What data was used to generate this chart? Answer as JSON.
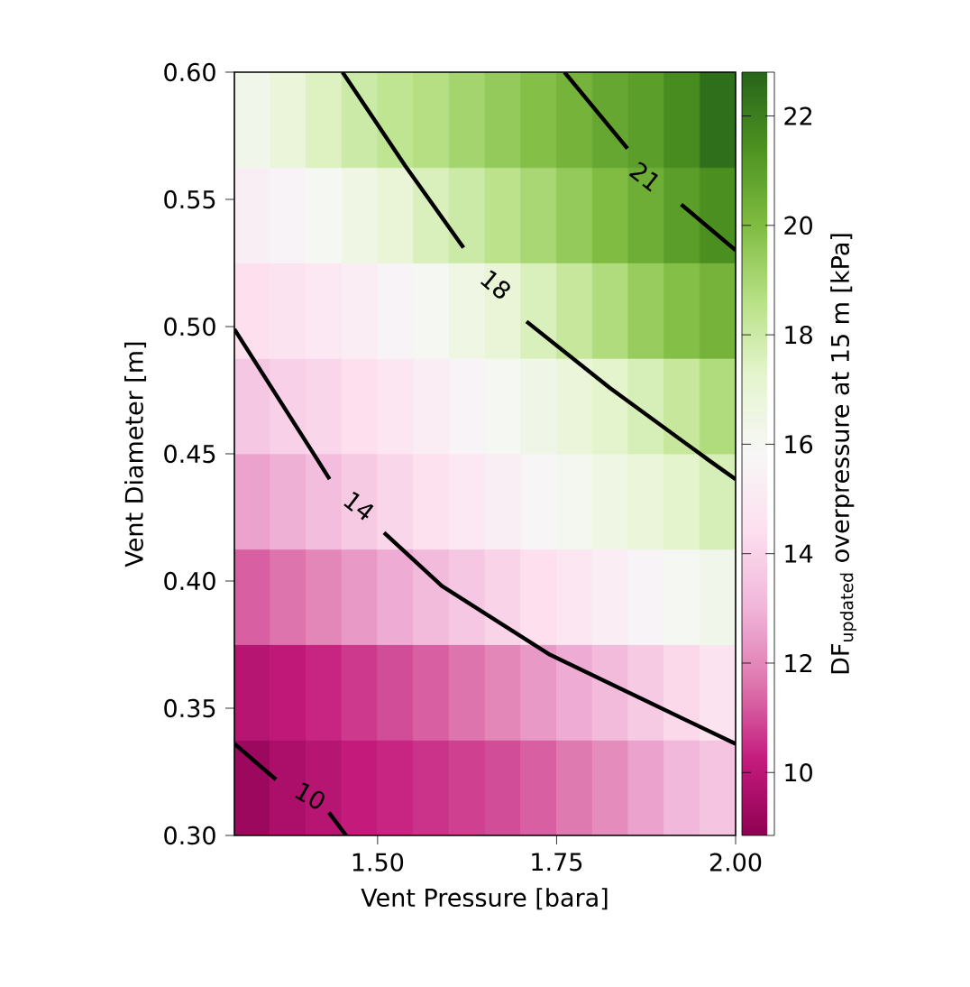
{
  "chart_data": [
    {
      "type": "heatmap",
      "clabel": "DF$_{updated}$ overpressure at 15 m [kPa]",
      "categories": [
        null,
        null,
        null,
        null,
        null,
        null,
        null,
        null,
        null,
        null,
        null,
        null,
        null,
        null
      ],
      "y_categories": [
        null,
        null,
        null,
        null,
        null,
        null,
        null,
        null
      ],
      "cells": [
        [
          16.3,
          16.9,
          17.5,
          18.0,
          18.4,
          18.7,
          19.1,
          19.5,
          19.9,
          20.3,
          20.7,
          21.0,
          21.6,
          22.5
        ],
        [
          15.3,
          15.6,
          16.0,
          16.5,
          17.0,
          17.6,
          18.0,
          18.5,
          19.0,
          19.5,
          20.0,
          20.5,
          21.0,
          21.5
        ],
        [
          14.4,
          14.6,
          14.9,
          15.2,
          15.6,
          16.0,
          16.5,
          17.0,
          17.6,
          18.2,
          18.8,
          19.4,
          19.9,
          20.3
        ],
        [
          13.6,
          13.9,
          14.1,
          14.4,
          14.8,
          15.2,
          15.6,
          16.0,
          16.4,
          16.9,
          17.3,
          17.7,
          18.2,
          18.8
        ],
        [
          12.6,
          12.9,
          13.3,
          13.7,
          14.1,
          14.5,
          14.9,
          15.3,
          15.7,
          16.1,
          16.5,
          16.9,
          17.3,
          17.7
        ],
        [
          11.3,
          11.6,
          12.0,
          12.4,
          12.8,
          13.2,
          13.6,
          14.0,
          14.4,
          14.8,
          15.2,
          15.6,
          16.0,
          16.3
        ],
        [
          9.9,
          10.1,
          10.4,
          10.7,
          11.0,
          11.3,
          11.6,
          12.0,
          12.4,
          12.8,
          13.2,
          13.7,
          14.2,
          14.6
        ],
        [
          9.2,
          9.6,
          9.9,
          10.2,
          10.4,
          10.6,
          10.8,
          11.0,
          11.3,
          11.7,
          12.1,
          12.6,
          13.1,
          13.5
        ]
      ],
      "clim": [
        8.85,
        22.8
      ],
      "cticks": [
        10,
        12,
        14,
        16,
        18,
        20,
        22
      ]
    },
    {
      "type": "line",
      "xlabel": "Vent Pressure [bara]",
      "ylabel": "Vent Diameter [m]",
      "xlim": [
        1.3,
        2.0
      ],
      "xticks": [
        {
          "value": 1.5,
          "label": "1.50"
        },
        {
          "value": 1.75,
          "label": "1.75"
        },
        {
          "value": 2.0,
          "label": "2.00"
        }
      ],
      "ylim": [
        0.3,
        0.6
      ],
      "yticks": [
        {
          "value": 0.3,
          "label": "0.30"
        },
        {
          "value": 0.35,
          "label": "0.35"
        },
        {
          "value": 0.4,
          "label": "0.40"
        },
        {
          "value": 0.45,
          "label": "0.45"
        },
        {
          "value": 0.5,
          "label": "0.50"
        },
        {
          "value": 0.55,
          "label": "0.55"
        },
        {
          "value": 0.6,
          "label": "0.60"
        }
      ],
      "series": [
        {
          "type": "line",
          "color": "#000000",
          "x": [
            1.761,
            1.849,
            1.874,
            1.924,
            2.0
          ],
          "values": [
            0.6,
            0.57,
            null,
            0.548,
            0.53
          ]
        },
        {
          "type": "line",
          "color": "#000000",
          "x": [
            1.451,
            1.539,
            1.62,
            1.665,
            1.708,
            1.824,
            1.96,
            2.0
          ],
          "values": [
            0.6,
            0.563,
            0.531,
            null,
            0.502,
            0.476,
            0.448,
            0.44
          ]
        },
        {
          "type": "line",
          "color": "#000000",
          "x": [
            1.3,
            1.413,
            1.433,
            1.474,
            1.509,
            1.59,
            1.741,
            1.874,
            2.0
          ],
          "values": [
            0.499,
            0.449,
            0.44,
            null,
            0.419,
            0.398,
            0.371,
            0.353,
            0.336
          ]
        },
        {
          "type": "line",
          "color": "#000000",
          "x": [
            1.3,
            1.358,
            1.406,
            1.432,
            1.456
          ],
          "values": [
            0.336,
            0.322,
            null,
            0.309,
            0.3
          ]
        }
      ],
      "annotations": [
        "21",
        "18",
        "14",
        "10"
      ]
    }
  ]
}
